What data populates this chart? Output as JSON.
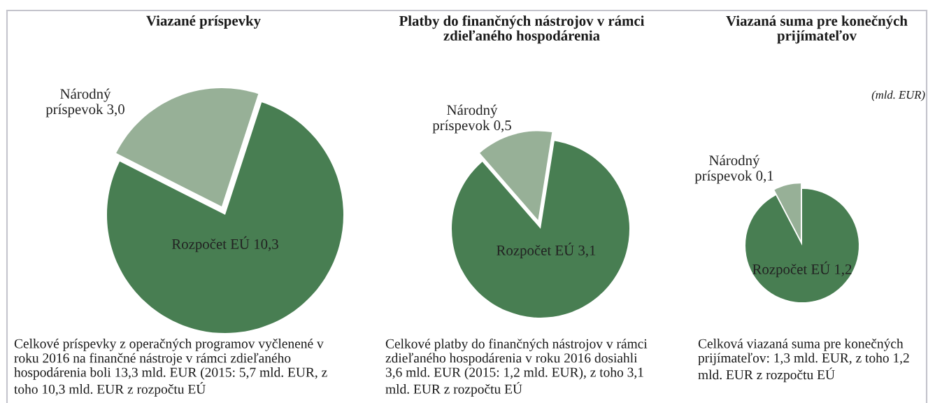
{
  "chart_data": [
    {
      "type": "pie",
      "title": "Viazané príspevky",
      "categories": [
        "Národný príspevok",
        "Rozpočet EÚ"
      ],
      "values": [
        3.0,
        10.3
      ],
      "value_labels": [
        "3,0",
        "10,3"
      ],
      "colors": [
        "#97b097",
        "#487e52"
      ],
      "annotations": [
        "Celkové príspevky z operačných programov vyčlenené v roku 2016 na finančné nástroje v rámci zdieľaného hospodárenia boli 13,3 mld. EUR (2015: 5,7 mld. EUR, z toho 10,3 mld. EUR z rozpočtu EÚ"
      ]
    },
    {
      "type": "pie",
      "title": "Platby do finančných nástrojov v rámci zdieľaného hospodárenia",
      "categories": [
        "Národný príspevok",
        "Rozpočet EÚ"
      ],
      "values": [
        0.5,
        3.1
      ],
      "value_labels": [
        "0,5",
        "3,1"
      ],
      "colors": [
        "#97b097",
        "#487e52"
      ],
      "annotations": [
        "Celkové platby do finančných nástrojov v rámci zdieľaného hospodárenia v roku 2016 dosiahli 3,6 mld. EUR (2015: 1,2 mld. EUR), z toho 3,1 mld. EUR z rozpočtu EÚ"
      ]
    },
    {
      "type": "pie",
      "title": "Viazaná suma pre konečných prijímateľov",
      "categories": [
        "Národný príspevok",
        "Rozpočet EÚ"
      ],
      "values": [
        0.1,
        1.2
      ],
      "value_labels": [
        "0,1",
        "1,2"
      ],
      "colors": [
        "#97b097",
        "#487e52"
      ],
      "annotations": [
        "(mld. EUR)",
        "Celková viazaná suma pre konečných prijímateľov: 1,3 mld. EUR, z toho 1,2 mld. EUR z rozpočtu EÚ"
      ]
    }
  ]
}
